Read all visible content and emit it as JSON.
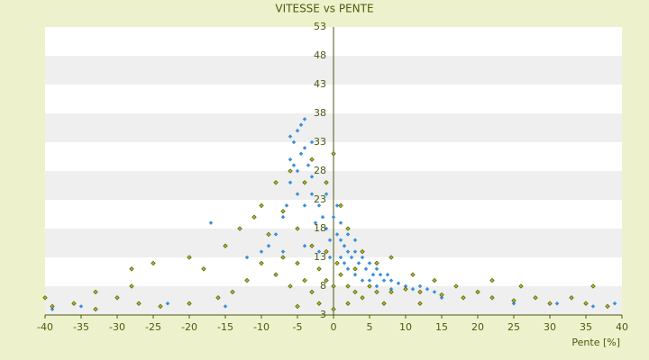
{
  "chart_data": {
    "type": "scatter",
    "title": "VITESSE vs PENTE",
    "x_label": "Pente [%]",
    "xlim": [
      -40,
      40
    ],
    "xticks": [
      -40,
      -35,
      -30,
      -25,
      -20,
      -15,
      -10,
      -5,
      0,
      5,
      10,
      15,
      20,
      25,
      30,
      35,
      40
    ],
    "ylim": [
      3,
      53
    ],
    "yticks": [
      3,
      8,
      13,
      18,
      23,
      28,
      33,
      38,
      43,
      48,
      53
    ],
    "grid": true,
    "series": [
      {
        "color": "#3b8fd9",
        "x": [
          -6,
          -5.5,
          -5,
          -4.5,
          -4,
          -5,
          -6,
          -4,
          -3.5,
          -3,
          -5,
          -4,
          -6.5,
          -7,
          -3,
          -2,
          -2.5,
          -1.5,
          -1,
          -0.5,
          0,
          0.5,
          1,
          1.5,
          2,
          2.5,
          3,
          3.5,
          4,
          4.5,
          5,
          5.5,
          6,
          6.5,
          7,
          7.5,
          8,
          9,
          10,
          11,
          12,
          13,
          14,
          -8,
          -9,
          -10,
          -12,
          -7,
          -4,
          -2,
          1,
          2,
          3,
          4,
          5,
          1,
          2,
          0.5,
          -1,
          -3,
          -4.5,
          -5.5,
          -6,
          -17,
          -23,
          -35,
          -39,
          25,
          31,
          36,
          39,
          15,
          18,
          -15,
          6,
          8,
          3,
          -0.5,
          1.5,
          -2
        ],
        "values": [
          30,
          33,
          35,
          36,
          37,
          28,
          26,
          32,
          29,
          27,
          24,
          22,
          22,
          20,
          24,
          22,
          19,
          20,
          18,
          16,
          20,
          17,
          16,
          15,
          14,
          13,
          14,
          12,
          13,
          11,
          12,
          10,
          11,
          10,
          9,
          10,
          9,
          8.5,
          8,
          7.5,
          8,
          7.5,
          7,
          17,
          15,
          14,
          13,
          14,
          15,
          14,
          13,
          11,
          10,
          9,
          9,
          19,
          17,
          22,
          24,
          33,
          31,
          29,
          34,
          19,
          5,
          4.5,
          4,
          5,
          5,
          4.5,
          5,
          6,
          6,
          4.5,
          8,
          7.5,
          16,
          13,
          12,
          11
        ]
      },
      {
        "color": "#a8b820",
        "x": [
          -10,
          -12,
          -14,
          -8,
          -6,
          -4,
          -3,
          -2,
          -1,
          0,
          1,
          2,
          3,
          5,
          6,
          8,
          10,
          12,
          15,
          18,
          20,
          22,
          25,
          28,
          30,
          35,
          38,
          -5,
          -7,
          -9,
          -11,
          -6,
          -4,
          -3,
          -8,
          -10,
          -13,
          -15,
          -18,
          -20,
          -25,
          -28,
          -30,
          -33,
          -36,
          -39,
          -40,
          -24,
          -20,
          -16,
          0,
          -1,
          1,
          2,
          4,
          6,
          8,
          11,
          14,
          17,
          22,
          26,
          33,
          36,
          -2,
          0,
          2,
          4,
          -5,
          7,
          12,
          -7,
          -5,
          -3,
          -1,
          0.5,
          3,
          -28,
          -33,
          -27
        ],
        "values": [
          12,
          9,
          7,
          10,
          8,
          9,
          7,
          11,
          9,
          8,
          10,
          8,
          7,
          8,
          7,
          7,
          7.5,
          7,
          6.5,
          6,
          7,
          6,
          5.5,
          6,
          5,
          5,
          4.5,
          18,
          21,
          17,
          20,
          28,
          26,
          30,
          26,
          22,
          18,
          15,
          11,
          13,
          12,
          8,
          6,
          7,
          5,
          4.5,
          6,
          4.5,
          5,
          6,
          31,
          26,
          22,
          18,
          14,
          12,
          13,
          10,
          9,
          8,
          9,
          8,
          6,
          8,
          5,
          4,
          5,
          6,
          4.5,
          5,
          5,
          13,
          12,
          15,
          14,
          12,
          11,
          11,
          4,
          5
        ]
      }
    ]
  }
}
